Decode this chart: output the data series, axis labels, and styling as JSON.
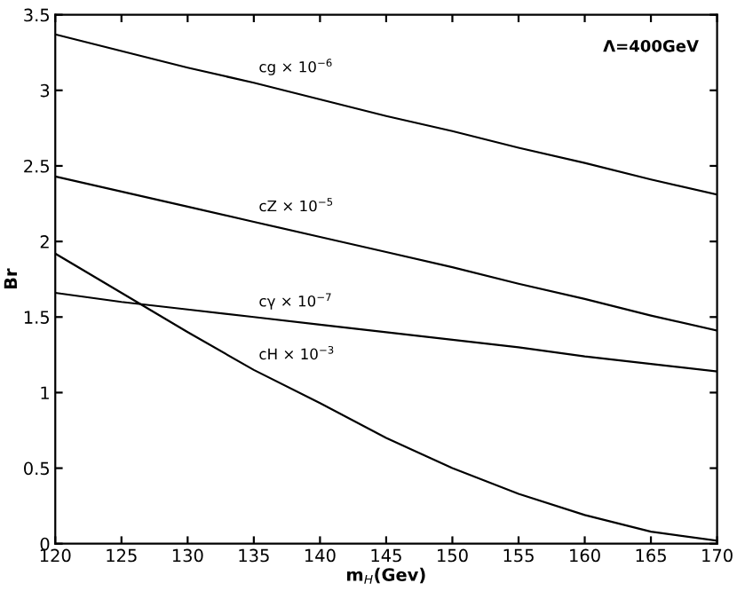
{
  "chart_data": {
    "type": "line",
    "xlabel": "m$_{H}$(Gev)",
    "ylabel": "Br",
    "x": [
      120,
      125,
      130,
      135,
      140,
      145,
      150,
      155,
      160,
      165,
      170
    ],
    "series": [
      {
        "name": "cg × 10$^{−6}$",
        "color": "#000000",
        "values": [
          3.37,
          3.26,
          3.15,
          3.05,
          2.94,
          2.83,
          2.73,
          2.62,
          2.52,
          2.41,
          2.31
        ]
      },
      {
        "name": "cZ × 10$^{−5}$",
        "color": "#000000",
        "values": [
          2.43,
          2.33,
          2.23,
          2.13,
          2.03,
          1.93,
          1.83,
          1.72,
          1.62,
          1.51,
          1.41
        ]
      },
      {
        "name": "cγ × 10$^{−7}$",
        "color": "#000000",
        "values": [
          1.66,
          1.6,
          1.55,
          1.5,
          1.45,
          1.4,
          1.35,
          1.3,
          1.24,
          1.19,
          1.14
        ]
      },
      {
        "name": "cH × 10$^{−3}$",
        "color": "#000000",
        "values": [
          1.92,
          1.66,
          1.4,
          1.15,
          0.93,
          0.7,
          0.5,
          0.33,
          0.19,
          0.08,
          0.02
        ]
      }
    ],
    "annotations": [
      "Λ=400GeV"
    ],
    "xlim": [
      120,
      170
    ],
    "ylim": [
      0,
      3.5
    ],
    "xticks": [
      120,
      125,
      130,
      135,
      140,
      145,
      150,
      155,
      160,
      165,
      170
    ],
    "yticks": [
      0,
      0.5,
      1,
      1.5,
      2,
      2.5,
      3,
      3.5
    ],
    "grid": false,
    "legend": false,
    "marker": "none",
    "line_style": "solid"
  }
}
